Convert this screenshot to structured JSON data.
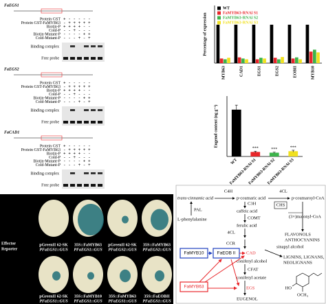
{
  "chart_data": [
    {
      "type": "bar",
      "y_label": "Percentage of expression",
      "categories": [
        "MYB63",
        "CAD1",
        "EGS1",
        "EGS2",
        "EOBII",
        "MYB10"
      ],
      "series": [
        {
          "name": "WT",
          "color": "#000000",
          "values": [
            100,
            100,
            100,
            100,
            100,
            100
          ]
        },
        {
          "name": "FaMYB63-RNAi S1",
          "color": "#e8262a",
          "values": [
            12,
            15,
            10,
            14,
            12,
            30
          ]
        },
        {
          "name": "FaMYB63-RNAi S2",
          "color": "#3cb44b",
          "values": [
            10,
            12,
            14,
            10,
            15,
            35
          ]
        },
        {
          "name": "FaMYB63-RNAi S3",
          "color": "#f0e020",
          "values": [
            14,
            10,
            12,
            16,
            10,
            28
          ]
        }
      ],
      "ylim": [
        0,
        150
      ],
      "legend": "top-left"
    },
    {
      "type": "bar",
      "y_label": "Eugenol content (ng g⁻¹)",
      "categories": [
        "WT",
        "FaMYB63-RNAi S1",
        "FaMYB63-RNAi S2",
        "FaMYB63-RNAi S3"
      ],
      "values": [
        31,
        3,
        2.5,
        3.5
      ],
      "errors": [
        3,
        0.5,
        0.4,
        0.6
      ],
      "colors": [
        "#000000",
        "#e8262a",
        "#3cb44b",
        "#f0e020"
      ],
      "annotations": [
        null,
        "***",
        "***",
        "***"
      ],
      "ylim": [
        0,
        40
      ]
    }
  ],
  "emsa": {
    "panels": [
      {
        "gene": "FaEGS1",
        "rows": [
          {
            "label": "Protein GST",
            "signs": "+ - - - - -"
          },
          {
            "label": "Protein GST-FaMYB63",
            "signs": "- + + + + +"
          },
          {
            "label": "Biotin-P",
            "signs": "+ + + + - -"
          },
          {
            "label": "Cold-P",
            "signs": "- - + - - -"
          },
          {
            "label": "Biotin-Mutant-P",
            "signs": "- - - - + +"
          },
          {
            "label": "Cold-Mutant-P",
            "signs": "- - - + - +"
          }
        ],
        "bands": [
          "Binding complex",
          "Free probe"
        ]
      },
      {
        "gene": "FaEGS2",
        "rows": [
          {
            "label": "Protein GST",
            "signs": "+ - - - - -"
          },
          {
            "label": "Protein GST-FaMYB63",
            "signs": "- + + + + +"
          },
          {
            "label": "Biotin-P",
            "signs": "+ + + + - -"
          },
          {
            "label": "Cold-P",
            "signs": "- - + - - -"
          },
          {
            "label": "Biotin-Mutant-P",
            "signs": "- - - - + +"
          },
          {
            "label": "Cold-Mutant-P",
            "signs": "- - - + - +"
          }
        ],
        "bands": [
          "Binding complex",
          "Free probe"
        ]
      },
      {
        "gene": "FaCAD1",
        "rows": [
          {
            "label": "Protein GST",
            "signs": "+ - - - - -"
          },
          {
            "label": "Protein GST-FaMYB63",
            "signs": "- + + + + +"
          },
          {
            "label": "Biotin-P",
            "signs": "+ + + + - -"
          },
          {
            "label": "Cold-P",
            "signs": "- - + - - -"
          },
          {
            "label": "Biotin-Mutant-P",
            "signs": "- - - - + +"
          },
          {
            "label": "Cold-Mutant-P",
            "signs": "- - - + - +"
          }
        ],
        "bands": [
          "Binding complex",
          "Free probe"
        ]
      }
    ]
  },
  "gus_assay": {
    "effector_label": "Effector",
    "reporter_label": "Reporter",
    "top": [
      {
        "effector": "pGreenII 62-SK",
        "reporter": "PFaEGS1::GUS"
      },
      {
        "effector": "35S::FaMYB63",
        "reporter": "PFaEGS1::GUS"
      },
      {
        "effector": "pGreenII 62-SK",
        "reporter": "PFaEGS2::GUS"
      },
      {
        "effector": "35S::FaMYB63",
        "reporter": "PFaEGS2::GUS"
      }
    ],
    "bottom": [
      {
        "effector": "pGreenII 62-SK",
        "reporter": "PFaEGS1::GUS"
      },
      {
        "effector": "35S::FaMYB10",
        "reporter": "PFaEGS1::GUS"
      },
      {
        "effector": "35S::FaMYB63",
        "reporter": "PFaEGS1::GUS"
      },
      {
        "effector": "35S::FaEOBII",
        "reporter": "PFaEGS1::GUS"
      }
    ]
  },
  "pathway": {
    "c4h": "C4H",
    "fourcl_top": "4CL",
    "cinnamic": "trans-cinnamic acid",
    "coumaric": "p-coumaric acid",
    "coumaroyl": "p-coumaroyl-CoA",
    "pal": "PAL",
    "phenylalanine": "L-phenylalanine",
    "c3h": "C3H",
    "caffeic": "caffeic acid",
    "chs": "CHS",
    "malonyl": "(3×)malonyl-CoA",
    "comt": "COMT",
    "ferulic": "ferulic acid",
    "flavonols": "FLAVONOLS",
    "anthocyanins": "ANTHOCYANINS",
    "fourcl": "4CL",
    "ccr": "CCR",
    "sinapyl": "sinapyl alcohol",
    "lignins": "LIGNINS, LIGNANS,",
    "neolignans": "NEOLIGNANS",
    "myb10": "FaMYB10",
    "eob": "FaEOB II",
    "cad": "CAD",
    "coniferyl_alcohol": "coniferyl alcohol",
    "cfat": "CFAT",
    "coniferyl_acetate": "coniferyl acetate",
    "myb63": "FaMYB63",
    "egs": "EGS",
    "eugenol": "EUGENOL",
    "ho": "HO",
    "och3": "OCH₃"
  }
}
